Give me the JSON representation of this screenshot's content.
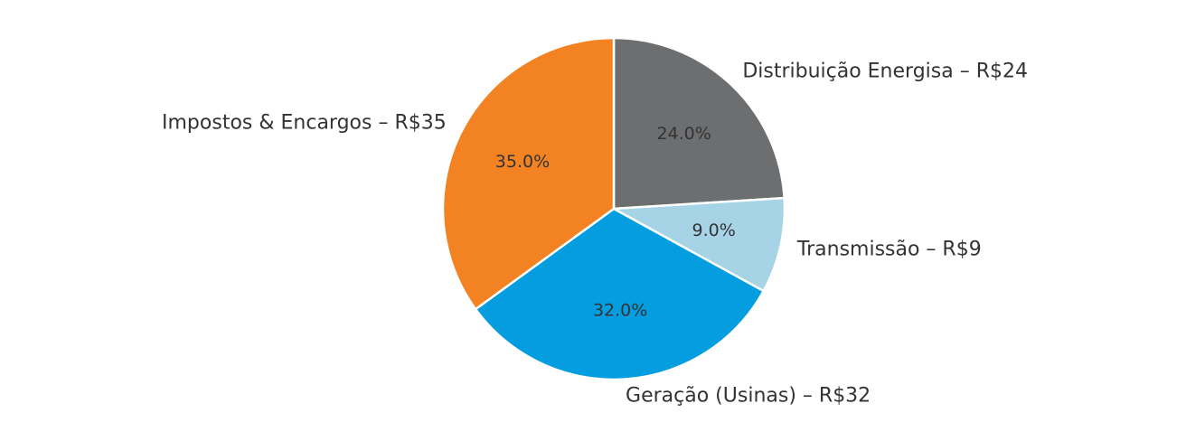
{
  "chart_data": {
    "type": "pie",
    "categories": [
      "Distribuição Energisa – R$24",
      "Transmissão – R$9",
      "Geração (Usinas) – R$32",
      "Impostos & Encargos – R$35"
    ],
    "values": [
      24,
      9,
      32,
      35
    ],
    "value_labels": [
      "24.0%",
      "9.0%",
      "32.0%",
      "35.0%"
    ],
    "colors": [
      "#6d6e70",
      "#a6d3e6",
      "#039de0",
      "#f28222"
    ]
  }
}
